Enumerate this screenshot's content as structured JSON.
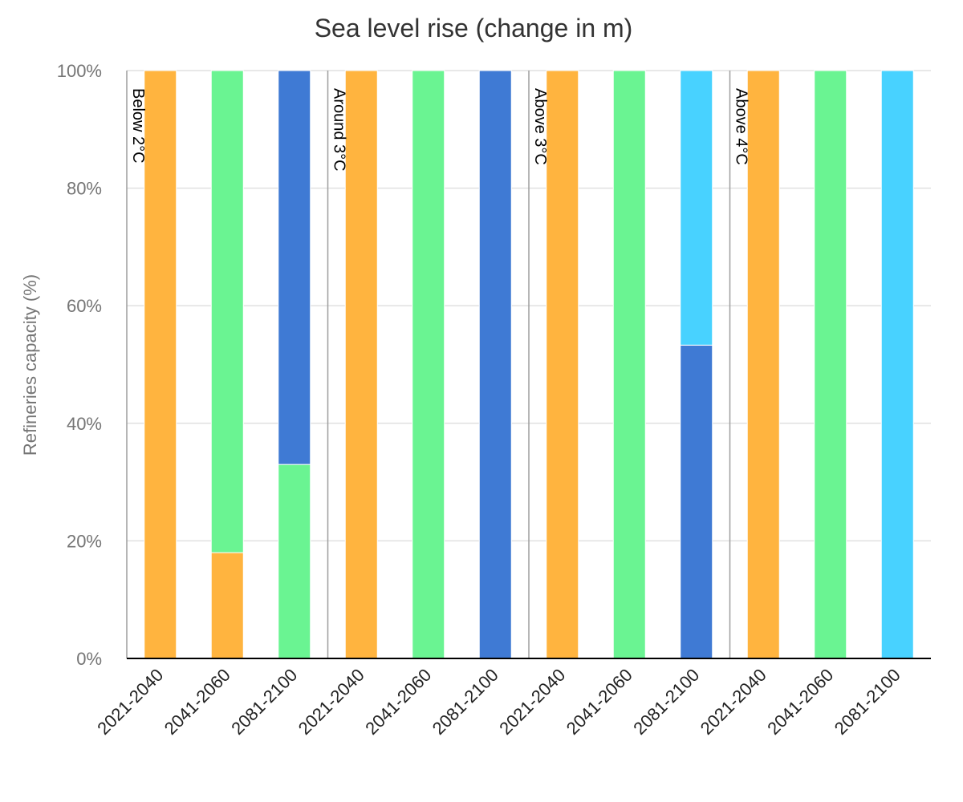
{
  "chart_data": {
    "type": "bar",
    "stacked": true,
    "normalized": true,
    "title": "Sea level rise (change in m)",
    "xlabel": "",
    "ylabel": "Refineries capacity (%)",
    "ylim": [
      0,
      100
    ],
    "y_ticks": [
      "0%",
      "20%",
      "40%",
      "60%",
      "80%",
      "100%"
    ],
    "grid": true,
    "legend": "none",
    "groups": [
      {
        "label": "Below 2°C",
        "bars": [
          {
            "category": "2021-2040",
            "segments": [
              {
                "color": "#FFB43F",
                "value": 100
              }
            ]
          },
          {
            "category": "2041-2060",
            "segments": [
              {
                "color": "#FFB43F",
                "value": 18
              },
              {
                "color": "#6AF492",
                "value": 82
              }
            ]
          },
          {
            "category": "2081-2100",
            "segments": [
              {
                "color": "#6AF492",
                "value": 33
              },
              {
                "color": "#3F7AD4",
                "value": 67
              }
            ]
          }
        ]
      },
      {
        "label": "Around 3°C",
        "bars": [
          {
            "category": "2021-2040",
            "segments": [
              {
                "color": "#FFB43F",
                "value": 100
              }
            ]
          },
          {
            "category": "2041-2060",
            "segments": [
              {
                "color": "#6AF492",
                "value": 100
              }
            ]
          },
          {
            "category": "2081-2100",
            "segments": [
              {
                "color": "#3F7AD4",
                "value": 100
              }
            ]
          }
        ]
      },
      {
        "label": "Above 3°C",
        "bars": [
          {
            "category": "2021-2040",
            "segments": [
              {
                "color": "#FFB43F",
                "value": 100
              }
            ]
          },
          {
            "category": "2041-2060",
            "segments": [
              {
                "color": "#6AF492",
                "value": 100
              }
            ]
          },
          {
            "category": "2081-2100",
            "segments": [
              {
                "color": "#3F7AD4",
                "value": 53.3
              },
              {
                "color": "#48D2FF",
                "value": 46.7
              }
            ]
          }
        ]
      },
      {
        "label": "Above 4°C",
        "bars": [
          {
            "category": "2021-2040",
            "segments": [
              {
                "color": "#FFB43F",
                "value": 100
              }
            ]
          },
          {
            "category": "2041-2060",
            "segments": [
              {
                "color": "#6AF492",
                "value": 100
              }
            ]
          },
          {
            "category": "2081-2100",
            "segments": [
              {
                "color": "#48D2FF",
                "value": 100
              }
            ]
          }
        ]
      }
    ],
    "colors": {
      "gridline": "#E0E0E0",
      "baseline": "#000000",
      "separator": "#9E9E9E"
    }
  }
}
